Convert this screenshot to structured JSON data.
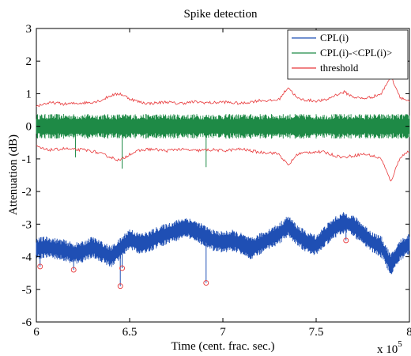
{
  "chart_data": {
    "type": "line",
    "title": "Spike detection",
    "xlabel": "Time (cent. frac. sec.)",
    "ylabel": "Attenuation (dB)",
    "x_multiplier": "x 10",
    "x_multiplier_exp": "5",
    "xlim": [
      6,
      8
    ],
    "ylim": [
      -6,
      3
    ],
    "xticks": [
      6,
      6.5,
      7,
      7.5,
      8
    ],
    "xtick_labels": [
      "6",
      "6.5",
      "7",
      "7.5",
      "8"
    ],
    "yticks": [
      -6,
      -5,
      -4,
      -3,
      -2,
      -1,
      0,
      1,
      2,
      3
    ],
    "ytick_labels": [
      "-6",
      "-5",
      "-4",
      "-3",
      "-2",
      "-1",
      "0",
      "1",
      "2",
      "3"
    ],
    "grid": false,
    "legend_position": "top-right",
    "series": [
      {
        "name": "CPL(i)",
        "color": "#1f4fb4",
        "style": "noisy-band",
        "x": [
          6.0,
          6.05,
          6.1,
          6.15,
          6.2,
          6.25,
          6.3,
          6.35,
          6.4,
          6.45,
          6.5,
          6.55,
          6.6,
          6.65,
          6.7,
          6.75,
          6.8,
          6.85,
          6.9,
          6.95,
          7.0,
          7.05,
          7.1,
          7.15,
          7.2,
          7.25,
          7.3,
          7.35,
          7.4,
          7.45,
          7.5,
          7.55,
          7.6,
          7.65,
          7.7,
          7.75,
          7.8,
          7.85,
          7.9,
          7.95,
          8.0
        ],
        "center": [
          -3.75,
          -3.7,
          -3.75,
          -3.8,
          -3.9,
          -3.85,
          -3.7,
          -3.85,
          -4.0,
          -3.75,
          -3.45,
          -3.6,
          -3.55,
          -3.4,
          -3.3,
          -3.2,
          -3.1,
          -3.2,
          -3.35,
          -3.5,
          -3.55,
          -3.5,
          -3.6,
          -3.75,
          -3.6,
          -3.45,
          -3.3,
          -3.05,
          -3.35,
          -3.55,
          -3.65,
          -3.35,
          -3.1,
          -2.95,
          -3.05,
          -3.3,
          -3.55,
          -3.7,
          -4.25,
          -3.8,
          -3.6
        ],
        "halfwidth": 0.33
      },
      {
        "name": "CPL(i)-<CPL(i)>",
        "color": "#1e8a46",
        "style": "noisy-band",
        "x": [
          6.0,
          6.1,
          6.2,
          6.3,
          6.4,
          6.5,
          6.6,
          6.7,
          6.8,
          6.9,
          7.0,
          7.1,
          7.2,
          7.3,
          7.4,
          7.5,
          7.6,
          7.7,
          7.8,
          7.9,
          8.0
        ],
        "center": [
          0,
          0,
          0,
          0,
          0,
          0,
          0,
          0,
          0,
          0,
          0,
          0,
          0,
          0,
          0,
          0,
          0,
          0,
          0,
          0,
          0
        ],
        "halfwidth": 0.38
      },
      {
        "name": "threshold",
        "color": "#e8383a",
        "style": "envelope",
        "x": [
          6.0,
          6.05,
          6.1,
          6.15,
          6.2,
          6.25,
          6.3,
          6.35,
          6.4,
          6.45,
          6.5,
          6.55,
          6.6,
          6.65,
          6.7,
          6.75,
          6.8,
          6.85,
          6.9,
          6.95,
          7.0,
          7.05,
          7.1,
          7.15,
          7.2,
          7.25,
          7.3,
          7.35,
          7.4,
          7.45,
          7.5,
          7.55,
          7.6,
          7.65,
          7.7,
          7.75,
          7.8,
          7.85,
          7.9,
          7.95,
          8.0
        ],
        "upper": [
          0.62,
          0.7,
          0.72,
          0.68,
          0.7,
          0.72,
          0.74,
          0.8,
          0.95,
          1.0,
          0.85,
          0.75,
          0.7,
          0.72,
          0.75,
          0.7,
          0.72,
          0.75,
          0.73,
          0.72,
          0.75,
          0.72,
          0.7,
          0.75,
          0.8,
          0.78,
          0.82,
          1.2,
          0.85,
          0.8,
          0.78,
          0.8,
          0.95,
          1.05,
          0.9,
          0.85,
          0.9,
          1.0,
          1.55,
          0.9,
          0.75
        ],
        "lower": [
          -0.62,
          -0.72,
          -0.72,
          -0.68,
          -0.72,
          -0.72,
          -0.76,
          -0.85,
          -0.95,
          -1.05,
          -0.85,
          -0.75,
          -0.7,
          -0.72,
          -0.75,
          -0.7,
          -0.72,
          -0.75,
          -0.73,
          -0.72,
          -0.75,
          -0.72,
          -0.7,
          -0.75,
          -0.8,
          -0.8,
          -0.85,
          -1.2,
          -0.85,
          -0.8,
          -0.78,
          -0.8,
          -0.9,
          -0.95,
          -0.9,
          -0.85,
          -0.9,
          -1.0,
          -1.7,
          -0.95,
          -0.75
        ]
      }
    ],
    "spikes": {
      "x": [
        6.02,
        6.2,
        6.45,
        6.46,
        6.91,
        7.66
      ],
      "y": [
        -4.3,
        -4.4,
        -4.9,
        -4.35,
        -4.8,
        -3.5
      ]
    },
    "spike_marker_color": "#e8383a"
  }
}
